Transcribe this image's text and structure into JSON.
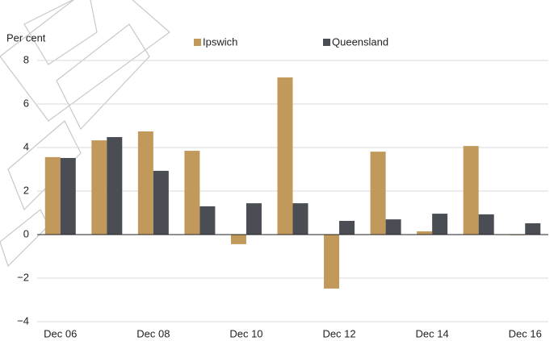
{
  "chart_data": {
    "type": "bar",
    "y_label": "Per cent",
    "categories": [
      "Dec 06",
      null,
      "Dec 08",
      null,
      "Dec 10",
      null,
      "Dec 12",
      null,
      "Dec 14",
      null,
      "Dec 16"
    ],
    "series": [
      {
        "name": "Ipswich",
        "color": "#c19a5b",
        "values": [
          3.56,
          4.33,
          4.74,
          3.85,
          -0.44,
          7.22,
          -2.48,
          3.81,
          0.15,
          4.07,
          -0.03
        ]
      },
      {
        "name": "Queensland",
        "color": "#4a4e54",
        "values": [
          3.52,
          4.48,
          2.93,
          1.3,
          1.44,
          1.44,
          0.63,
          0.7,
          0.96,
          0.93,
          0.52
        ]
      }
    ],
    "ylim": [
      -4,
      8
    ],
    "yticks": [
      {
        "value": -4,
        "label": "−4"
      },
      {
        "value": -2,
        "label": "−2"
      },
      0,
      2,
      4,
      6,
      8
    ],
    "grid": true,
    "legend": "top"
  }
}
